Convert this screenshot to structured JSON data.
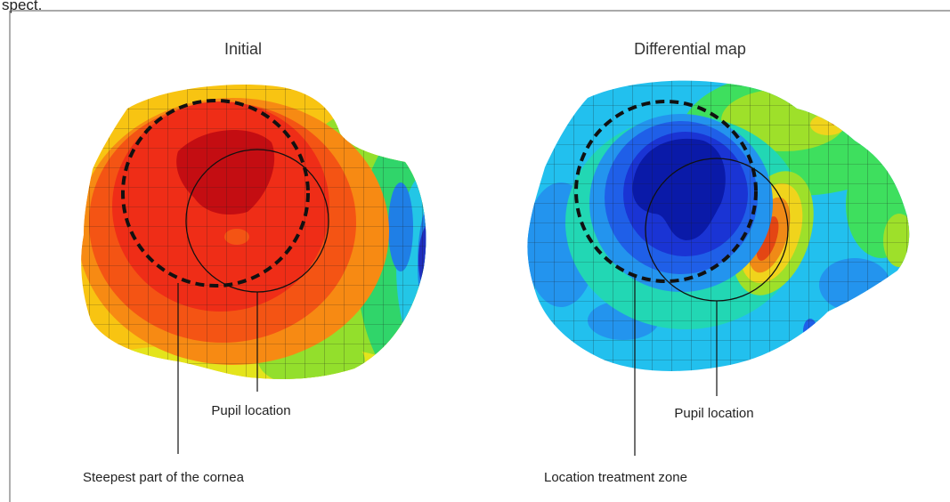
{
  "header_fragment": "spect.",
  "panels": [
    {
      "title": "Initial",
      "labels": {
        "pupil": "Pupil location",
        "zone": "Steepest part of the cornea"
      }
    },
    {
      "title": "Differential map",
      "labels": {
        "pupil": "Pupil location",
        "zone": "Location treatment zone"
      }
    }
  ],
  "colors": {
    "frame": "#777777",
    "grid": "#1a1a1a",
    "initial_scale": [
      "#1f2fbf",
      "#1f7fe6",
      "#23c6e6",
      "#30d56a",
      "#93df2c",
      "#e4e41c",
      "#f8c412",
      "#f78a13",
      "#f45414",
      "#ef2d17",
      "#c40d12"
    ],
    "differential_scale": [
      "#0a1aa8",
      "#1a34d4",
      "#1f5fe8",
      "#2394ee",
      "#22c0ee",
      "#22d7b4",
      "#3edf5e",
      "#9ee02a",
      "#f0d41c",
      "#f08a17",
      "#e44614"
    ]
  }
}
